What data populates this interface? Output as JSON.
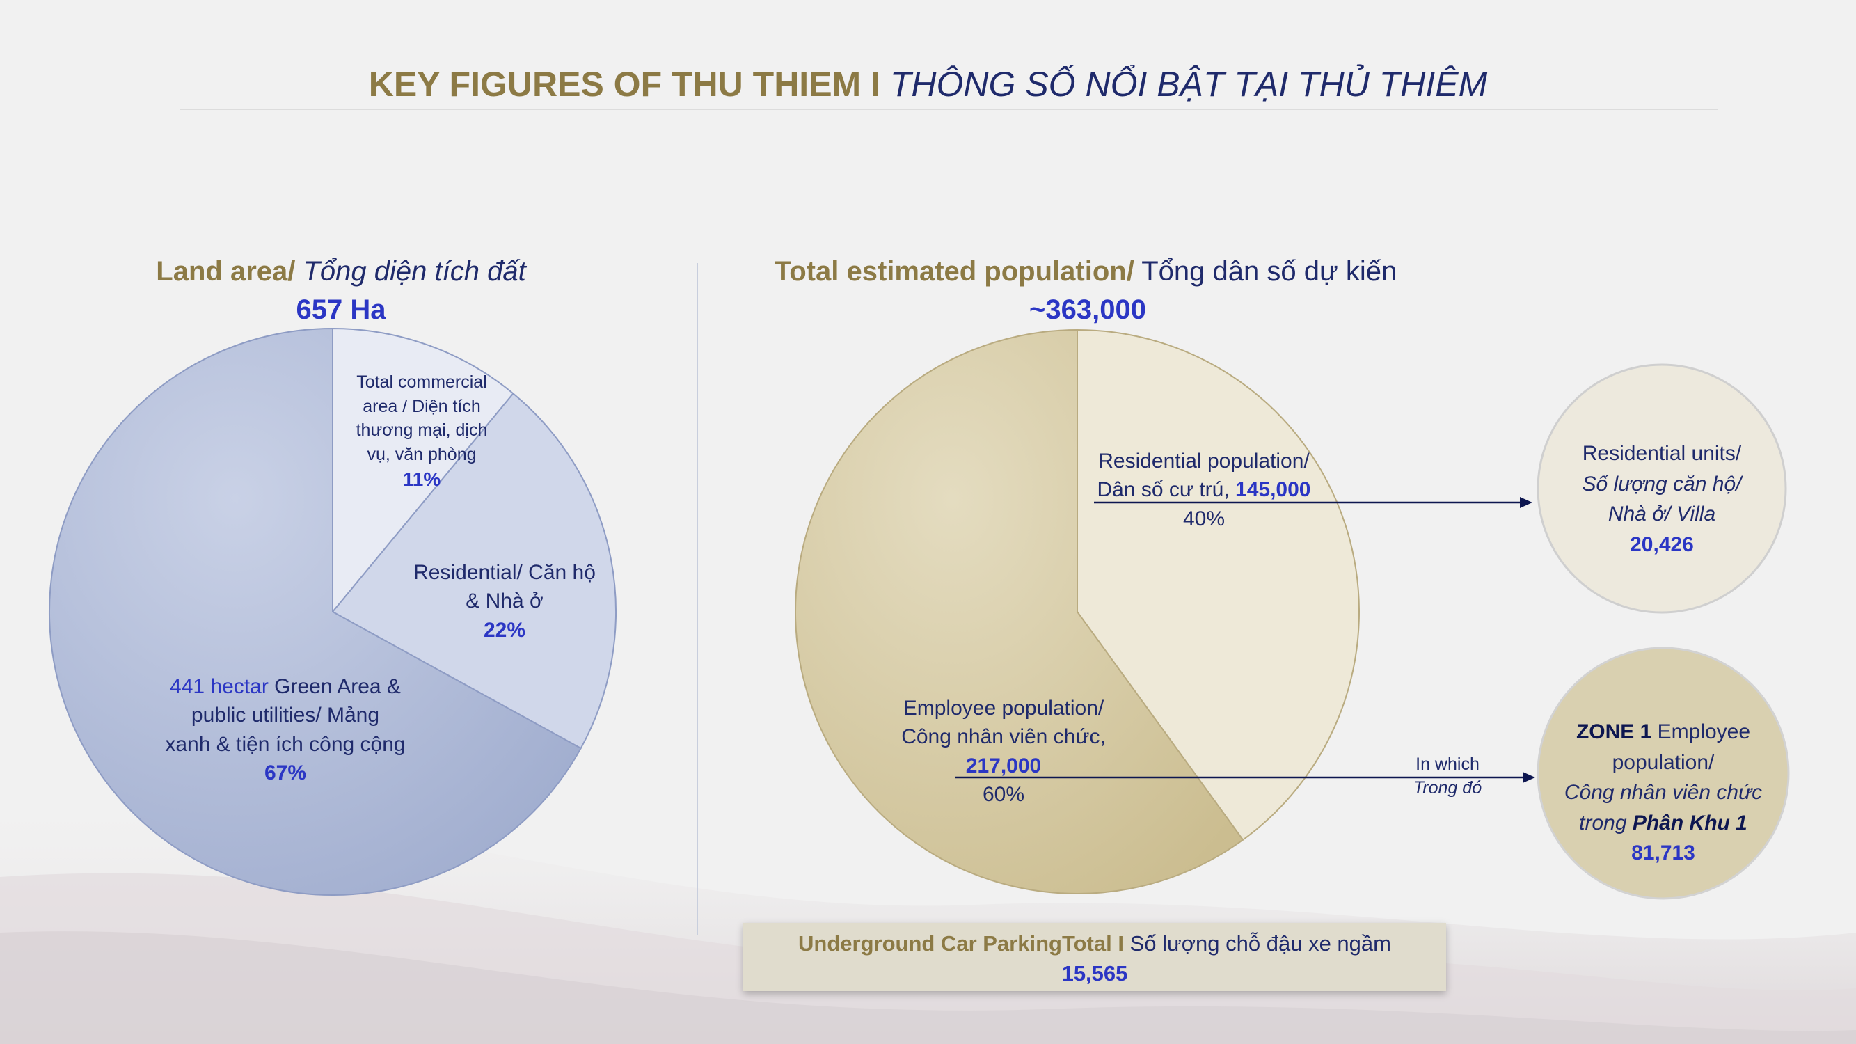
{
  "title": {
    "en": "KEY FIGURES OF THU THIEM",
    "separator": " I ",
    "vi": "THÔNG SỐ NỔI BẬT TẠI THỦ THIÊM"
  },
  "land": {
    "title_en": "Land area/",
    "title_vi": "Tổng diện tích đất",
    "total": "657 Ha",
    "labels": {
      "commercial": [
        "Total commercial",
        "area / Diện tích",
        "thương mại, dịch",
        "vụ, văn phòng"
      ],
      "commercial_pct": "11%",
      "residential": [
        "Residential/ Căn hộ",
        "& Nhà ở"
      ],
      "residential_pct": "22%",
      "green_highlight": "441 hectar",
      "green": [
        " Green Area &",
        "public utilities/ Mảng",
        "xanh & tiện ích công cộng"
      ],
      "green_pct": "67%"
    }
  },
  "population": {
    "title_en": "Total estimated population/",
    "title_vi": "Tổng dân số dự kiến",
    "total": "~363,000",
    "residential": [
      "Residential population/",
      "Dân số cư trú, "
    ],
    "residential_value": "145,000",
    "residential_pct": "40%",
    "employee": [
      "Employee population/",
      "Công nhân viên chức,"
    ],
    "employee_value": "217,000",
    "employee_pct": "60%",
    "in_which": "In which",
    "trong_do": "Trong đó"
  },
  "units_circle": {
    "line1": "Residential units/",
    "line2": "Số lượng căn hộ/",
    "line3": "Nhà ở/ Villa",
    "value": "20,426"
  },
  "zone_circle": {
    "zone": "ZONE 1",
    "line1": " Employee",
    "line2": "population/",
    "line3": "Công nhân viên chức",
    "line4a": "trong ",
    "line4b": "Phân Khu 1",
    "value": "81,713"
  },
  "parking": {
    "label_en": "Underground Car ParkingTotal",
    "sep": " I ",
    "label_vi": "Số lượng chỗ đậu xe ngầm",
    "value": "15,565"
  },
  "colors": {
    "land_commercial": "#e8ebf4",
    "land_residential": "#d0d7ea",
    "land_green": "#aab6d4",
    "pop_residential": "#eee9d8",
    "pop_employee": "#d5c9a4"
  },
  "chart_data": [
    {
      "type": "pie",
      "title": "Land area/ Tổng diện tích đất",
      "categories": [
        "Total commercial area / Diện tích thương mại, dịch vụ, văn phòng",
        "Residential/ Căn hộ & Nhà ở",
        "441 hectar Green Area & public utilities/ Mảng xanh & tiện ích công cộng"
      ],
      "values": [
        11,
        22,
        67
      ]
    },
    {
      "type": "pie",
      "title": "Total estimated population/ Tổng dân số dự kiến",
      "categories": [
        "Residential population/ Dân số cư trú, 145,000",
        "Employee population/ Công nhân viên chức, 217,000"
      ],
      "values": [
        40,
        60
      ]
    }
  ]
}
